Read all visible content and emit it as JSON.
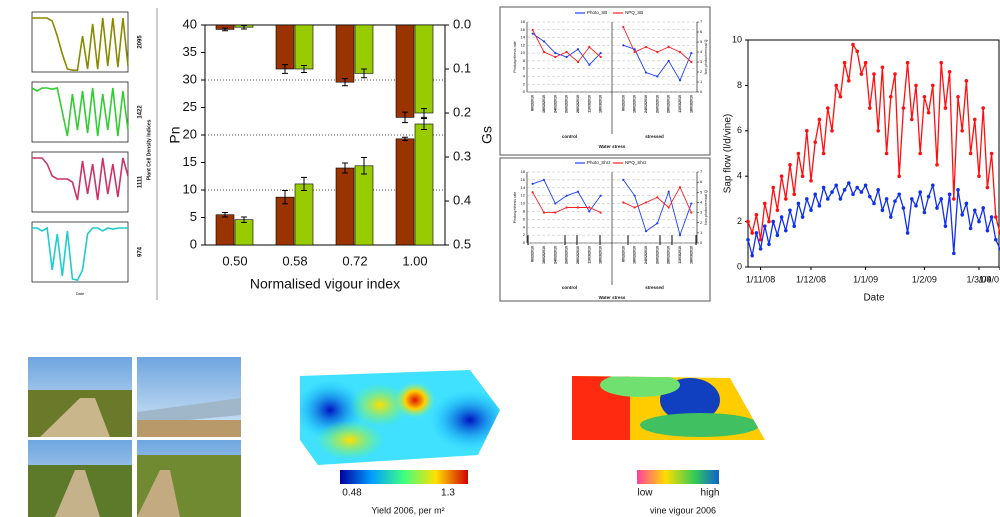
{
  "left_panel": {
    "y_label": "Plant Cell Density Indices"
  },
  "chart_data": [
    {
      "type": "line",
      "annotation": "2095",
      "color": "#8a8a00",
      "ylim": [
        0,
        10
      ],
      "values": [
        9,
        9,
        9,
        9,
        8.5,
        6,
        3,
        0.5,
        0.3,
        0.3,
        6,
        0.5,
        8,
        0.5,
        9,
        1,
        9,
        0.8,
        9,
        1
      ]
    },
    {
      "type": "line",
      "annotation": "1422",
      "color": "#33cc33",
      "ylim": [
        0,
        10
      ],
      "values": [
        9,
        8.5,
        9,
        9,
        8.8,
        9,
        5,
        1,
        8,
        2,
        8.5,
        1.5,
        9,
        1,
        8,
        2,
        9,
        1,
        8.5,
        2
      ]
    },
    {
      "type": "line",
      "annotation": "1111",
      "color": "#cc3366",
      "ylim": [
        0,
        10
      ],
      "values": [
        9,
        9,
        9,
        8,
        6,
        5.5,
        5.5,
        5.5,
        5,
        2,
        8.5,
        3,
        8,
        2,
        9,
        3,
        8,
        2.5,
        9,
        6
      ]
    },
    {
      "type": "line",
      "annotation": "974",
      "color": "#22cccc",
      "ylim": [
        0,
        10
      ],
      "x_label": "Date",
      "values": [
        9,
        9,
        8.5,
        9,
        2,
        8,
        1,
        8.5,
        0.5,
        0.3,
        2,
        8,
        9,
        9,
        8.5,
        9,
        8.8,
        9,
        9,
        9
      ]
    },
    {
      "type": "bar",
      "x_label": "Normalised vigour index",
      "y_label": "Pn",
      "y2_label": "Gs",
      "categories": [
        "0.50",
        "0.58",
        "0.72",
        "1.00"
      ],
      "series": [
        {
          "color": "#993300",
          "values": [
            5.5,
            8.7,
            14,
            19.3
          ],
          "errors": [
            0.4,
            1.2,
            0.9,
            0.3
          ]
        },
        {
          "color": "#99cc00",
          "values": [
            4.6,
            11.1,
            14.4,
            22
          ],
          "errors": [
            0.5,
            1.2,
            1.5,
            1
          ]
        },
        {
          "color": "#993300",
          "axis": "y2",
          "values": [
            0.01,
            0.1,
            0.13,
            0.21
          ],
          "errors": [
            0.003,
            0.01,
            0.008,
            0.012
          ]
        },
        {
          "color": "#99cc00",
          "axis": "y2",
          "values": [
            0.005,
            0.1,
            0.11,
            0.2
          ],
          "errors": [
            0.004,
            0.008,
            0.01,
            0.01
          ]
        }
      ],
      "ylim": [
        0,
        40
      ],
      "yticks": [
        0,
        5,
        10,
        15,
        20,
        25,
        30,
        35,
        40
      ],
      "y2lim": [
        0.5,
        0
      ],
      "y2ticks": [
        {
          "value": 0,
          "label": "0.0"
        },
        0.1,
        0.2,
        0.3,
        0.4,
        0.5
      ],
      "grid_ticks": [
        10,
        20,
        30
      ]
    },
    {
      "type": "line",
      "x_label": "Water stress",
      "y_label": "Photosynthesis rate",
      "y2_label": "Non-photochemical Q",
      "groups": [
        "control",
        "stressed"
      ],
      "categories": [
        "8/02/2010",
        "18/02/2010",
        "24/02/2010",
        "26/02/2010",
        "28/02/2010",
        "11/03/2010",
        "18/03/2010",
        null,
        "8/02/2010",
        "18/02/2010",
        "24/02/2010",
        "26/02/2010",
        "28/02/2010",
        "11/03/2010",
        "18/03/2010"
      ],
      "series": [
        {
          "name": "Photo_SB",
          "color": "#1f3fff",
          "values": [
            15,
            13,
            10,
            9,
            11,
            7,
            10,
            null,
            12,
            11,
            5,
            4,
            8,
            3,
            10
          ]
        },
        {
          "name": "NPQ_SB",
          "color": "#ff2020",
          "axis": "y2",
          "values": [
            6.2,
            4,
            3.5,
            4,
            3,
            4.5,
            3.5,
            null,
            6.5,
            4,
            4.5,
            4,
            4.5,
            4,
            3
          ]
        }
      ],
      "ylim": [
        0,
        18
      ],
      "yticks": [
        0,
        2,
        4,
        6,
        8,
        10,
        12,
        14,
        16,
        18
      ],
      "y2lim": [
        0,
        7
      ],
      "y2ticks": [
        0,
        1,
        2,
        3,
        4,
        5,
        6,
        7
      ]
    },
    {
      "type": "line",
      "x_label": "Water stress",
      "y_label": "Photosynthesis rate",
      "y2_label": "Non-photochemical Q",
      "groups": [
        "control",
        "stressed"
      ],
      "categories": [
        "8/02/2010",
        "18/02/2010",
        "24/02/2010",
        "26/02/2010",
        "28/02/2010",
        "11/03/2010",
        "18/03/2010",
        null,
        "8/02/2010",
        "18/02/2010",
        "24/02/2010",
        "26/02/2010",
        "28/02/2010",
        "11/03/2010",
        "18/03/2010"
      ],
      "series": [
        {
          "name": "Photo_Shrz",
          "color": "#1f3fff",
          "values": [
            15,
            16,
            10,
            12,
            13,
            8,
            12,
            null,
            16,
            12,
            3,
            5,
            13,
            2,
            10
          ]
        },
        {
          "name": "NPQ_Shrz",
          "color": "#ff2020",
          "axis": "y2",
          "values": [
            5,
            3,
            3,
            3.5,
            3.5,
            3.5,
            3,
            null,
            4,
            3.5,
            4,
            4.5,
            3.5,
            5.5,
            3
          ]
        }
      ],
      "ylim": [
        0,
        18
      ],
      "yticks": [
        0,
        2,
        4,
        6,
        8,
        10,
        12,
        14,
        16,
        18
      ],
      "y2lim": [
        0,
        7
      ],
      "y2ticks": [
        0,
        1,
        2,
        3,
        4,
        5,
        6,
        7
      ]
    },
    {
      "type": "line",
      "x_label": "Date",
      "y_label": "Sap flow (l/d/vine)",
      "categories": [
        null,
        null,
        null,
        "1/11/08",
        null,
        null,
        null,
        null,
        null,
        null,
        null,
        null,
        null,
        null,
        null,
        "1/12/08",
        null,
        null,
        null,
        null,
        null,
        null,
        null,
        null,
        null,
        null,
        null,
        null,
        "1/1/09",
        null,
        null,
        null,
        null,
        null,
        null,
        null,
        null,
        null,
        null,
        null,
        null,
        null,
        "1/2/09",
        null,
        null,
        null,
        null,
        null,
        null,
        null,
        null,
        null,
        null,
        null,
        null,
        "1/3/09",
        null,
        null,
        null,
        null,
        "1/4/0"
      ],
      "series": [
        {
          "color": "#ff1010",
          "values": [
            2,
            1.5,
            2.3,
            1.2,
            2.8,
            2,
            3.5,
            2.5,
            4,
            3,
            4.5,
            3.2,
            5,
            4,
            6,
            3.8,
            5.5,
            6.5,
            5,
            7,
            6,
            8,
            7.5,
            9,
            8.2,
            9.8,
            9.5,
            8.5,
            9,
            7,
            8.5,
            6,
            8.8,
            5,
            7.5,
            8.5,
            4,
            7,
            9,
            6.5,
            8,
            5,
            7.5,
            6.8,
            8,
            4.5,
            9,
            7,
            8.6,
            3,
            7.5,
            6,
            8.2,
            5,
            6.5,
            4,
            7,
            3.5,
            5,
            2.2,
            1.5
          ]
        },
        {
          "color": "#1030ee",
          "values": [
            1.2,
            0.5,
            1.5,
            0.8,
            1.8,
            1,
            2,
            1.4,
            2.2,
            1.6,
            2.5,
            1.8,
            2.8,
            2.2,
            3,
            2.5,
            3.2,
            2.7,
            3.5,
            3,
            3.3,
            3.6,
            3,
            3.4,
            3.7,
            3.2,
            3.5,
            3.3,
            3.6,
            3.1,
            2.8,
            3.4,
            2.5,
            3,
            2.2,
            2.9,
            3.2,
            2.6,
            1.5,
            3,
            2.7,
            3.3,
            2.4,
            3.1,
            3.6,
            2.6,
            3,
            1.8,
            3.2,
            0.6,
            3.4,
            2.3,
            2.8,
            1.7,
            2.5,
            2,
            2.6,
            1.6,
            2.2,
            1.2,
            0.8
          ]
        }
      ],
      "ylim": [
        0,
        10
      ],
      "yticks": [
        0,
        2,
        4,
        6,
        8,
        10
      ]
    }
  ],
  "maps": [
    {
      "min_label": "0.48",
      "max_label": "1.3",
      "caption": "Yield 2006, per m²"
    },
    {
      "min_label": "low",
      "max_label": "high",
      "caption": "vine vigour 2006"
    }
  ]
}
